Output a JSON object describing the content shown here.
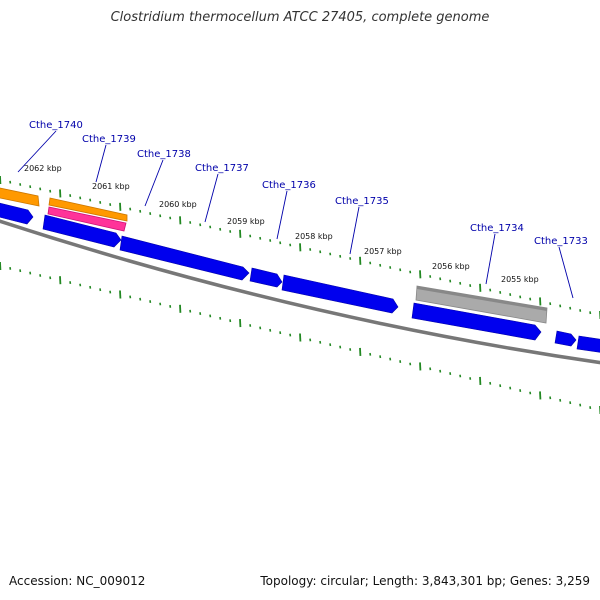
{
  "title": "Clostridium thermocellum ATCC 27405, complete genome",
  "footer": {
    "accession": "Accession: NC_009012",
    "summary": "Topology: circular; Length: 3,843,301 bp; Genes: 3,259"
  },
  "colors": {
    "cds_blue": "#0000ee",
    "backbone": "#777777",
    "tick_green": "#228822",
    "label_blue": "#0000aa",
    "orange": "#ff9900",
    "pink": "#ff3399",
    "gray": "#aaaaaa"
  },
  "kbp_labels": [
    "2062 kbp",
    "2061 kbp",
    "2060 kbp",
    "2059 kbp",
    "2058 kbp",
    "2057 kbp",
    "2056 kbp",
    "2055 kbp"
  ],
  "gene_labels": [
    "Cthe_1740",
    "Cthe_1739",
    "Cthe_1738",
    "Cthe_1737",
    "Cthe_1736",
    "Cthe_1735",
    "Cthe_1734",
    "Cthe_1733"
  ]
}
